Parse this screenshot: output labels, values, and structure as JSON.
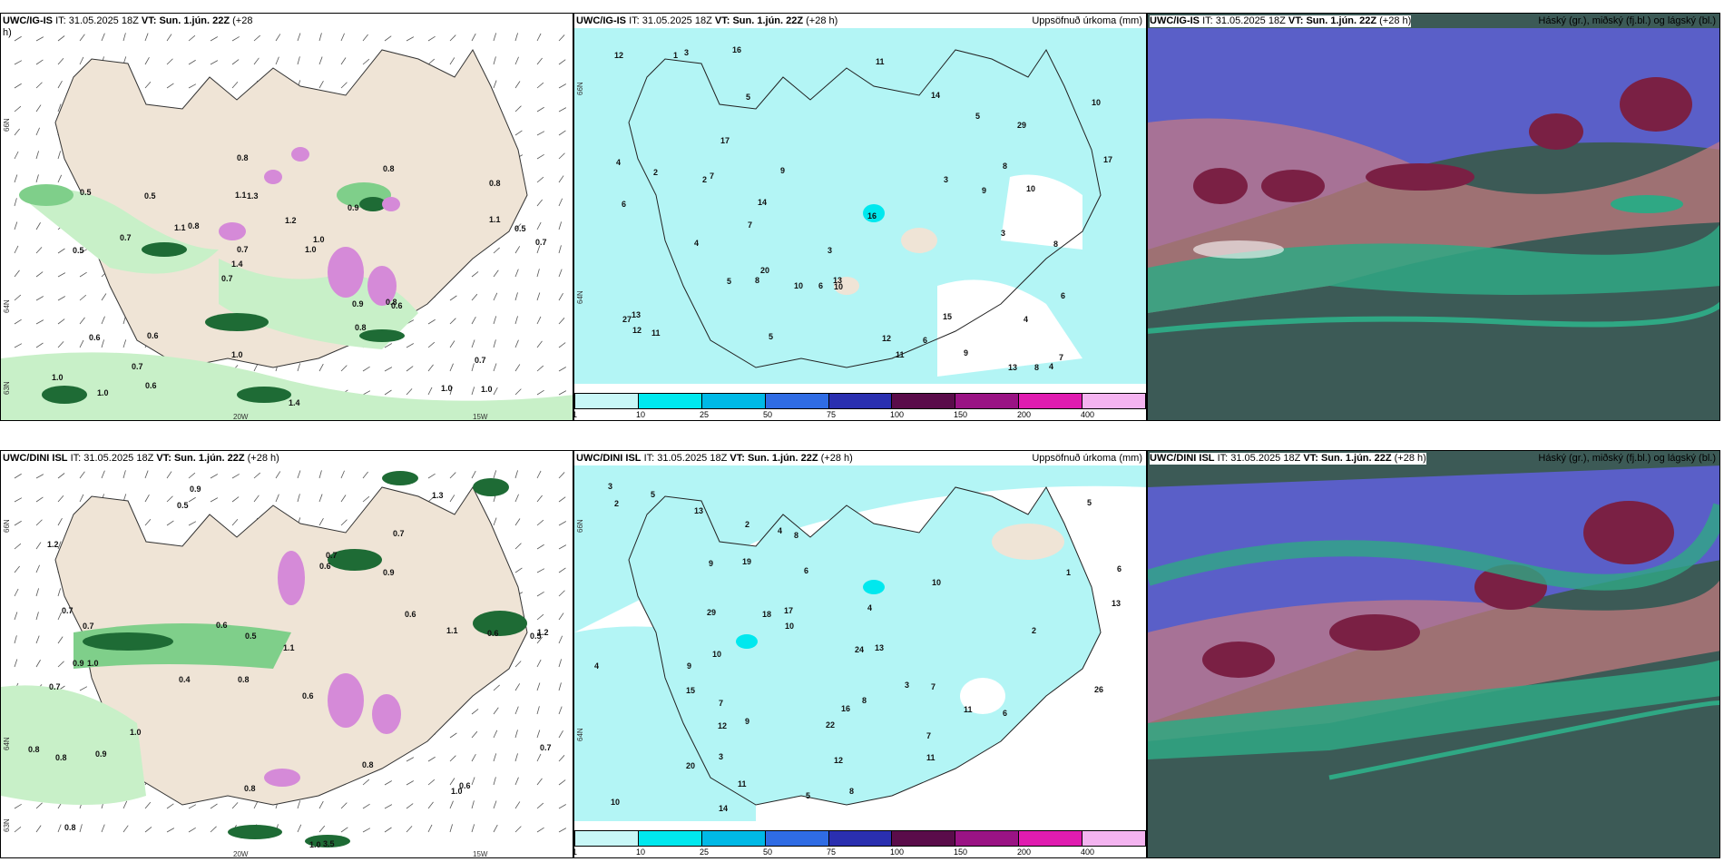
{
  "colors": {
    "land": "#efe4d6",
    "precip_light": "#c8f0c8",
    "precip_mid": "#7fcf8a",
    "precip_dark": "#1e6b35",
    "snow_pink": "#d58ad8",
    "accum_cyan": "#b3f5f5",
    "cloud_high": "#5a5fc8",
    "cloud_mid": "#7a2044",
    "cloud_low": "#2fa884",
    "cloud_bg": "#3c5a56"
  },
  "panels": [
    {
      "id": "top-left",
      "model": "UWC/IG-IS",
      "it_label": "IT:",
      "it_value": "31.05.2025 18Z",
      "vt_label": "VT:",
      "vt_value": "Sun. 1.jún. 22Z",
      "lead": "(+28",
      "lead_wrap": "h)",
      "lat_labels": [
        "66N",
        "64N",
        "63N"
      ],
      "lon_labels": [
        "20W",
        "15W"
      ]
    },
    {
      "id": "top-middle",
      "model": "UWC/IG-IS",
      "it_label": "IT:",
      "it_value": "31.05.2025 18Z",
      "vt_label": "VT:",
      "vt_value": "Sun. 1.jún. 22Z",
      "lead": "(+28 h)",
      "right_title": "Uppsöfnuð úrkoma (mm)",
      "lat_labels": [
        "66N",
        "64N"
      ]
    },
    {
      "id": "top-right",
      "model": "UWC/IG-IS",
      "it_label": "IT:",
      "it_value": "31.05.2025 18Z",
      "vt_label": "VT:",
      "vt_value": "Sun. 1.jún. 22Z",
      "lead": "(+28 h)",
      "right_title": "Háský (gr.), miðský (fj.bl.) og lágský (bl.)"
    },
    {
      "id": "bottom-left",
      "model": "UWC/DINI ISL",
      "it_label": "IT:",
      "it_value": "31.05.2025 18Z",
      "vt_label": "VT:",
      "vt_value": "Sun. 1.jún. 22Z",
      "lead": "(+28 h)",
      "lat_labels": [
        "66N",
        "64N",
        "63N"
      ],
      "lon_labels": [
        "20W",
        "15W"
      ]
    },
    {
      "id": "bottom-middle",
      "model": "UWC/DINI ISL",
      "it_label": "IT:",
      "it_value": "31.05.2025 18Z",
      "vt_label": "VT:",
      "vt_value": "Sun. 1.jún. 22Z",
      "lead": "(+28 h)",
      "right_title": "Uppsöfnuð úrkoma (mm)",
      "lat_labels": [
        "66N",
        "64N"
      ]
    },
    {
      "id": "bottom-right",
      "model": "UWC/DINI ISL",
      "it_label": "IT:",
      "it_value": "31.05.2025 18Z",
      "vt_label": "VT:",
      "vt_value": "Sun. 1.jún. 22Z",
      "lead": "(+28 h)",
      "right_title": "Háský (gr.), miðský (fj.bl.) og lágský (bl.)"
    }
  ],
  "colorbar": {
    "ticks": [
      "1",
      "10",
      "25",
      "50",
      "75",
      "100",
      "150",
      "200",
      "400"
    ],
    "colors": [
      "#c8f7f7",
      "#00e8ee",
      "#00b9e6",
      "#2f6ce4",
      "#2a2fb0",
      "#5a0c4a",
      "#9a1384",
      "#e01cb0",
      "#f4b4f0"
    ]
  },
  "top_left_values": [
    "1.0",
    "0.5",
    "0.8",
    "0.7",
    "0.9",
    "1.0",
    "1.1",
    "1.2",
    "0.6",
    "0.8",
    "1.0",
    "0.7",
    "1.3",
    "1.0",
    "0.6",
    "0.5",
    "0.8",
    "0.7",
    "0.9",
    "1.1",
    "1.4",
    "1.0",
    "0.7",
    "0.5",
    "0.8",
    "0.6",
    "1.0",
    "0.7",
    "0.8",
    "1.4",
    "1.1",
    "0.7",
    "0.8",
    "0.6",
    "0.5",
    "1.0"
  ],
  "top_middle_values": [
    "3",
    "2",
    "1",
    "3",
    "4",
    "5",
    "6",
    "7",
    "8",
    "9",
    "10",
    "11",
    "12",
    "13",
    "14",
    "15",
    "16",
    "17",
    "10",
    "9",
    "8",
    "7",
    "6",
    "5",
    "4",
    "3",
    "12",
    "13",
    "29",
    "27",
    "20",
    "10",
    "11",
    "6",
    "5",
    "4",
    "2",
    "3",
    "4",
    "5",
    "6",
    "7",
    "8",
    "9",
    "10",
    "12",
    "13",
    "17",
    "16",
    "14",
    "11",
    "8"
  ],
  "bottom_left_values": [
    "0.9",
    "0.7",
    "0.5",
    "0.8",
    "0.6",
    "1.0",
    "1.2",
    "0.9",
    "0.7",
    "0.6",
    "1.1",
    "0.8",
    "0.5",
    "0.4",
    "1.0",
    "3.5",
    "0.8",
    "1.3",
    "0.6",
    "1.0",
    "0.7",
    "0.9",
    "1.2",
    "0.6",
    "0.8",
    "0.7",
    "0.5",
    "1.1",
    "0.6",
    "0.8",
    "1.0",
    "0.7",
    "0.9",
    "0.6",
    "0.8",
    "0.7"
  ],
  "bottom_middle_values": [
    "2",
    "3",
    "4",
    "5",
    "6",
    "7",
    "8",
    "9",
    "10",
    "11",
    "12",
    "13",
    "14",
    "15",
    "16",
    "18",
    "22",
    "20",
    "19",
    "17",
    "13",
    "12",
    "11",
    "10",
    "9",
    "8",
    "7",
    "6",
    "5",
    "4",
    "3",
    "2",
    "1",
    "26",
    "24",
    "29",
    "13",
    "10",
    "11",
    "10",
    "9",
    "8",
    "7",
    "6",
    "5",
    "4",
    "3",
    "2"
  ]
}
